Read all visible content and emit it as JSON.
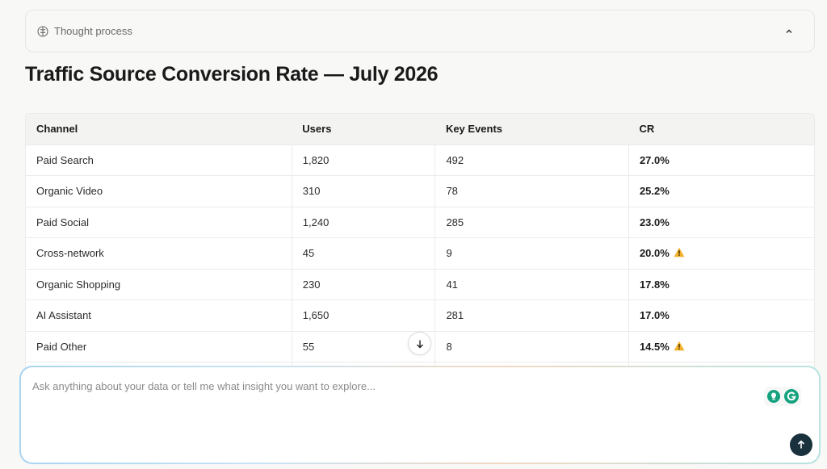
{
  "thought": {
    "label": "Thought process",
    "icon": "brain-icon"
  },
  "title": "Traffic Source Conversion Rate — July 2026",
  "table": {
    "columns": [
      "Channel",
      "Users",
      "Key Events",
      "CR"
    ],
    "rows": [
      {
        "channel": "Paid Search",
        "users": "1,820",
        "key_events": "492",
        "cr": "27.0%",
        "warning": false
      },
      {
        "channel": "Organic Video",
        "users": "310",
        "key_events": "78",
        "cr": "25.2%",
        "warning": false
      },
      {
        "channel": "Paid Social",
        "users": "1,240",
        "key_events": "285",
        "cr": "23.0%",
        "warning": false
      },
      {
        "channel": "Cross-network",
        "users": "45",
        "key_events": "9",
        "cr": "20.0%",
        "warning": true
      },
      {
        "channel": "Organic Shopping",
        "users": "230",
        "key_events": "41",
        "cr": "17.8%",
        "warning": false
      },
      {
        "channel": "AI Assistant",
        "users": "1,650",
        "key_events": "281",
        "cr": "17.0%",
        "warning": false
      },
      {
        "channel": "Paid Other",
        "users": "55",
        "key_events": "8",
        "cr": "14.5%",
        "warning": true
      }
    ]
  },
  "composer": {
    "placeholder": "Ask anything about your data or tell me what insight you want to explore...",
    "value": ""
  },
  "colors": {
    "send_button": "#19303d",
    "warning": "#f2b02b",
    "grammarly": "#15a37f"
  }
}
